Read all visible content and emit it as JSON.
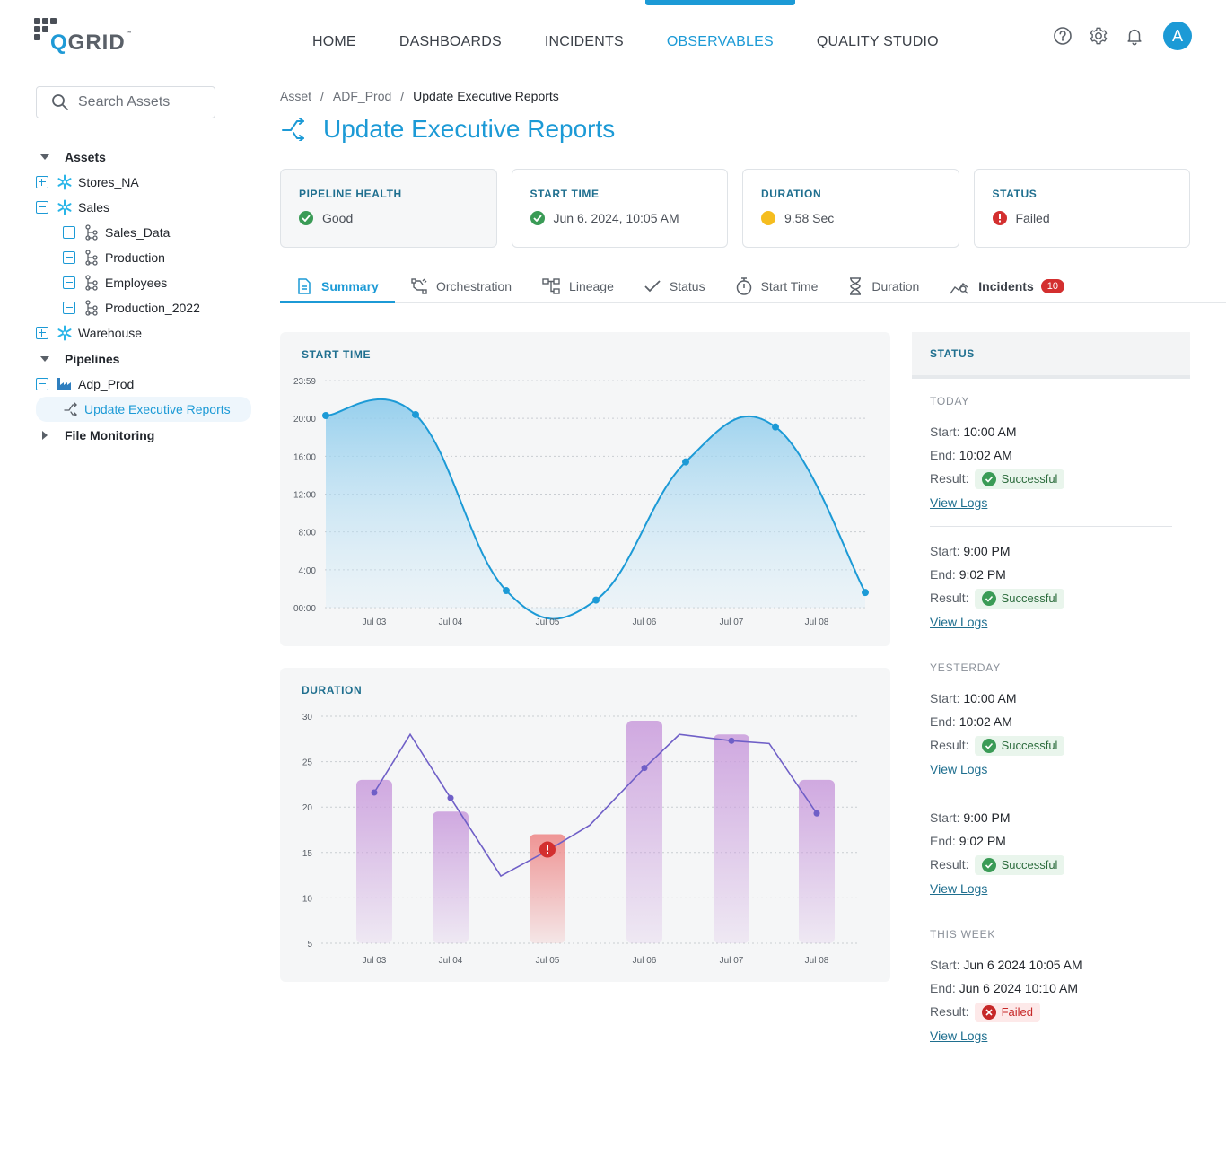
{
  "app": {
    "logo_text": "QGRID",
    "logo_tm": "™"
  },
  "nav": {
    "items": [
      {
        "label": "HOME"
      },
      {
        "label": "DASHBOARDS"
      },
      {
        "label": "INCIDENTS"
      },
      {
        "label": "OBSERVABLES",
        "active": true
      },
      {
        "label": "QUALITY STUDIO"
      }
    ],
    "avatar_initial": "A",
    "icons": [
      "help-icon",
      "settings-icon",
      "bell-icon"
    ]
  },
  "sidebar": {
    "search_placeholder": "Search Assets",
    "tree": [
      {
        "label": "Assets"
      },
      {
        "label": "Stores_NA"
      },
      {
        "label": "Sales"
      },
      {
        "label": "Sales_Data"
      },
      {
        "label": "Production"
      },
      {
        "label": "Employees"
      },
      {
        "label": "Production_2022"
      },
      {
        "label": "Warehouse"
      },
      {
        "label": "Pipelines"
      },
      {
        "label": "Adp_Prod"
      },
      {
        "label": "Update Executive Reports",
        "selected": true
      },
      {
        "label": "File Monitoring"
      }
    ]
  },
  "breadcrumb": [
    "Asset",
    "/",
    "ADF_Prod",
    "/",
    "Update Executive Reports"
  ],
  "page_title": "Update Executive Reports",
  "cards": [
    {
      "label": "PIPELINE HEALTH",
      "value": "Good",
      "indicator": "success",
      "color": "#3a9b56"
    },
    {
      "label": "START TIME",
      "value": "Jun 6. 2024, 10:05 AM",
      "indicator": "success",
      "color": "#3a9b56"
    },
    {
      "label": "DURATION",
      "value": "9.58 Sec",
      "indicator": "warning",
      "color": "#f5bd1f"
    },
    {
      "label": "STATUS",
      "value": "Failed",
      "indicator": "error",
      "color": "#d32f2f"
    }
  ],
  "tabs": [
    {
      "label": "Summary",
      "active": true
    },
    {
      "label": "Orchestration"
    },
    {
      "label": "Lineage"
    },
    {
      "label": "Status"
    },
    {
      "label": "Start Time"
    },
    {
      "label": "Duration"
    },
    {
      "label": "Incidents",
      "badge": "10"
    }
  ],
  "chart_data": [
    {
      "title": "START TIME",
      "type": "area",
      "x": [
        "Jul 03",
        "Jul 04",
        "Jul 05",
        "Jul 06",
        "Jul 07",
        "Jul 08"
      ],
      "y_ticks": [
        "23:59",
        "20:00",
        "16:00",
        "12:00",
        "8:00",
        "4:00",
        "00:00"
      ],
      "ylim": [
        0,
        24
      ],
      "points": [
        {
          "x": "Jul 02",
          "y": 20.3
        },
        {
          "x": "Jul 03",
          "y": 20.4
        },
        {
          "x": "Jul 04",
          "y": 1.8
        },
        {
          "x": "Jul 05",
          "y": 0.8
        },
        {
          "x": "Jul 06",
          "y": 15.4
        },
        {
          "x": "Jul 07",
          "y": 19.1
        },
        {
          "x": "Jul 08",
          "y": 1.6
        }
      ],
      "color": "#1c9ad6",
      "grid": true
    },
    {
      "title": "DURATION",
      "type": "bar",
      "categories": [
        "Jul 03",
        "Jul 04",
        "Jul 05",
        "Jul 06",
        "Jul 07",
        "Jul 08"
      ],
      "values": [
        23,
        19.5,
        17,
        29.5,
        28,
        23
      ],
      "failed_index": 2,
      "line": [
        21.6,
        28,
        21,
        12.4,
        15.2,
        18,
        24.3,
        28,
        27.3,
        27,
        19.3
      ],
      "ylim": [
        5,
        30
      ],
      "y_ticks": [
        30,
        25,
        20,
        15,
        10,
        5
      ],
      "bar_color": "#c99bdc",
      "fail_color": "#ee8a8a",
      "line_color": "#6f5fc7",
      "grid": true
    }
  ],
  "status": {
    "title": "STATUS",
    "groups": [
      {
        "label": "TODAY",
        "entries": [
          {
            "start": "10:00 AM",
            "end": "10:02 AM",
            "result": "Successful",
            "ok": true
          },
          {
            "start": "9:00 PM",
            "end": "9:02 PM",
            "result": "Successful",
            "ok": true
          }
        ]
      },
      {
        "label": "YESTERDAY",
        "entries": [
          {
            "start": "10:00 AM",
            "end": "10:02 AM",
            "result": "Successful",
            "ok": true
          },
          {
            "start": "9:00 PM",
            "end": "9:02 PM",
            "result": "Successful",
            "ok": true
          }
        ]
      },
      {
        "label": "THIS WEEK",
        "entries": [
          {
            "start": "Jun 6 2024 10:05 AM",
            "end": "Jun 6 2024 10:10 AM",
            "result": "Failed",
            "ok": false
          }
        ]
      }
    ],
    "start_label": "Start:",
    "end_label": "End:",
    "result_label": "Result:",
    "view_logs": "View Logs"
  }
}
